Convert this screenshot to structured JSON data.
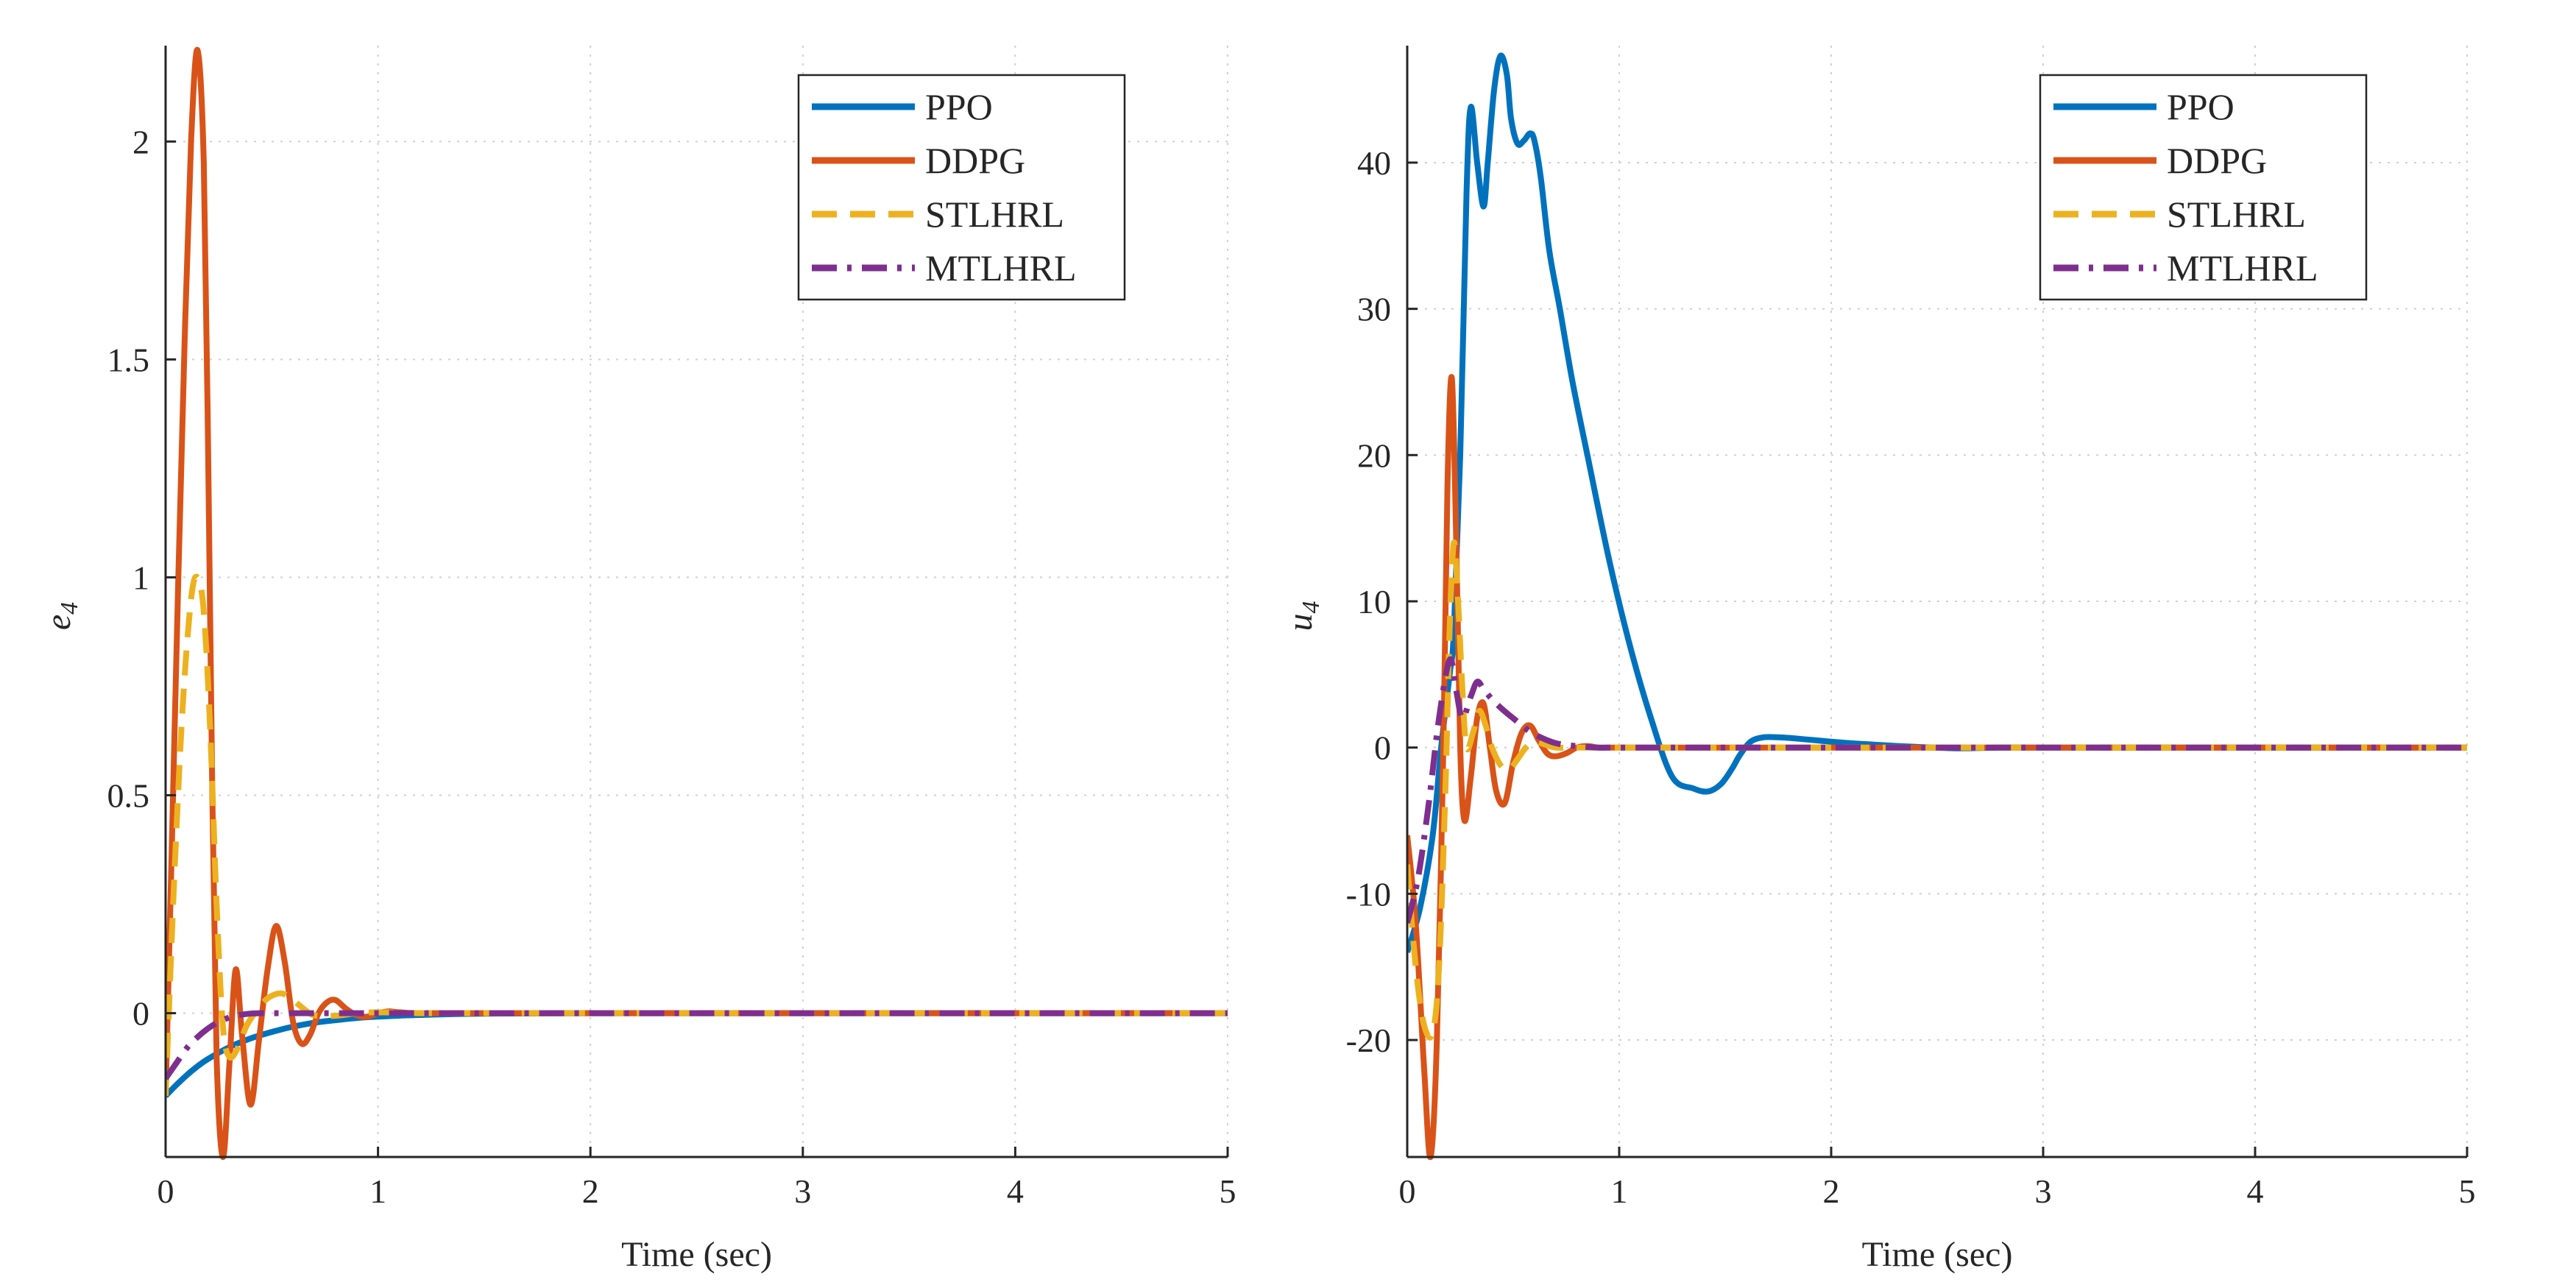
{
  "colors": {
    "PPO": "#0072BD",
    "DDPG": "#D95319",
    "STLHRL": "#EDB120",
    "MTLHRL": "#7E2F8E",
    "axis": "#262626",
    "grid": "#d0d0d0"
  },
  "chart_data": [
    {
      "type": "line",
      "title": "",
      "xlabel": "Time (sec)",
      "ylabel": "e",
      "ylabel_sub": "4",
      "xlim": [
        0,
        5
      ],
      "ylim": [
        -0.33,
        2.22
      ],
      "xticks": [
        0,
        1,
        2,
        3,
        4,
        5
      ],
      "xtick_labels": [
        "0",
        "1",
        "2",
        "3",
        "4",
        "5"
      ],
      "yticks": [
        0,
        0.5,
        1,
        1.5,
        2
      ],
      "ytick_labels": [
        "0",
        "0.5",
        "1",
        "1.5",
        "2"
      ],
      "grid": true,
      "legend_position": "top-right",
      "series": [
        {
          "name": "PPO",
          "style": "solid",
          "x": [
            0,
            0.05,
            0.1,
            0.15,
            0.2,
            0.3,
            0.4,
            0.5,
            0.6,
            0.7,
            0.8,
            0.9,
            1.0,
            1.2,
            1.5,
            2.0,
            3.0,
            4.0,
            5.0
          ],
          "y": [
            -0.19,
            -0.165,
            -0.142,
            -0.122,
            -0.105,
            -0.078,
            -0.058,
            -0.043,
            -0.031,
            -0.022,
            -0.016,
            -0.011,
            -0.008,
            -0.004,
            -0.001,
            0,
            0,
            0,
            0
          ]
        },
        {
          "name": "DDPG",
          "style": "solid",
          "x": [
            0,
            0.03,
            0.06,
            0.09,
            0.12,
            0.15,
            0.18,
            0.2,
            0.22,
            0.24,
            0.27,
            0.3,
            0.33,
            0.36,
            0.4,
            0.44,
            0.48,
            0.52,
            0.56,
            0.6,
            0.64,
            0.68,
            0.72,
            0.76,
            0.8,
            0.85,
            0.9,
            0.95,
            1.0,
            1.05,
            1.1,
            1.2,
            1.5,
            2.0,
            3.0,
            4.0,
            5.0
          ],
          "y": [
            -0.19,
            0.4,
            1.0,
            1.55,
            2.0,
            2.21,
            1.95,
            1.3,
            0.5,
            -0.1,
            -0.33,
            -0.12,
            0.1,
            -0.05,
            -0.21,
            -0.06,
            0.1,
            0.2,
            0.12,
            -0.02,
            -0.07,
            -0.05,
            0.0,
            0.025,
            0.03,
            0.01,
            -0.005,
            -0.008,
            0.0,
            0.004,
            0.002,
            0,
            0,
            0,
            0,
            0,
            0
          ]
        },
        {
          "name": "STLHRL",
          "style": "dashed",
          "x": [
            0,
            0.04,
            0.08,
            0.12,
            0.15,
            0.18,
            0.21,
            0.24,
            0.27,
            0.3,
            0.34,
            0.38,
            0.42,
            0.46,
            0.5,
            0.55,
            0.6,
            0.65,
            0.7,
            0.8,
            0.9,
            1.0,
            1.2,
            1.5,
            2.0,
            3.0,
            4.0,
            5.0
          ],
          "y": [
            -0.19,
            0.3,
            0.7,
            0.95,
            1.0,
            0.92,
            0.65,
            0.25,
            -0.03,
            -0.1,
            -0.08,
            -0.03,
            0.0,
            0.025,
            0.04,
            0.045,
            0.03,
            0.01,
            -0.005,
            -0.006,
            0.0,
            0.002,
            0,
            0,
            0,
            0,
            0,
            0
          ]
        },
        {
          "name": "MTLHRL",
          "style": "dashdot",
          "x": [
            0,
            0.05,
            0.1,
            0.15,
            0.2,
            0.25,
            0.3,
            0.35,
            0.4,
            0.45,
            0.5,
            0.6,
            0.7,
            0.8,
            1.0,
            1.5,
            2.0,
            3.0,
            4.0,
            5.0
          ],
          "y": [
            -0.15,
            -0.115,
            -0.08,
            -0.055,
            -0.035,
            -0.02,
            -0.01,
            -0.004,
            -0.001,
            0.0,
            0.0,
            0.0,
            0.0,
            0.0,
            0,
            0,
            0,
            0,
            0,
            0
          ]
        }
      ]
    },
    {
      "type": "line",
      "title": "",
      "xlabel": "Time (sec)",
      "ylabel": "u",
      "ylabel_sub": "4",
      "xlim": [
        0,
        5
      ],
      "ylim": [
        -28,
        48
      ],
      "xticks": [
        0,
        1,
        2,
        3,
        4,
        5
      ],
      "xtick_labels": [
        "0",
        "1",
        "2",
        "3",
        "4",
        "5"
      ],
      "yticks": [
        -20,
        -10,
        0,
        10,
        20,
        30,
        40
      ],
      "ytick_labels": [
        "-20",
        "-10",
        "0",
        "10",
        "20",
        "30",
        "40"
      ],
      "grid": true,
      "legend_position": "top-right",
      "series": [
        {
          "name": "PPO",
          "style": "solid",
          "x": [
            0,
            0.06,
            0.12,
            0.16,
            0.2,
            0.22,
            0.25,
            0.28,
            0.3,
            0.33,
            0.36,
            0.38,
            0.41,
            0.44,
            0.47,
            0.49,
            0.52,
            0.55,
            0.58,
            0.6,
            0.63,
            0.67,
            0.72,
            0.78,
            0.85,
            0.95,
            1.05,
            1.15,
            1.25,
            1.35,
            1.42,
            1.48,
            1.53,
            1.57,
            1.62,
            1.68,
            1.75,
            1.85,
            2.0,
            2.2,
            2.4,
            2.6,
            2.8,
            3.0,
            4.0,
            5.0
          ],
          "y": [
            -14,
            -11,
            -6,
            0,
            5,
            8,
            20,
            38,
            43.8,
            40,
            37,
            40,
            45,
            47.3,
            46,
            43,
            41.3,
            41.5,
            42,
            41.5,
            39,
            34,
            30,
            25,
            20,
            13,
            7,
            2,
            -2,
            -2.8,
            -3,
            -2.5,
            -1.5,
            -0.5,
            0.4,
            0.7,
            0.7,
            0.6,
            0.4,
            0.2,
            0.05,
            -0.05,
            0,
            0,
            0,
            0
          ]
        },
        {
          "name": "DDPG",
          "style": "solid",
          "x": [
            0,
            0.04,
            0.08,
            0.11,
            0.14,
            0.17,
            0.19,
            0.21,
            0.23,
            0.25,
            0.27,
            0.3,
            0.33,
            0.36,
            0.39,
            0.42,
            0.46,
            0.5,
            0.54,
            0.58,
            0.62,
            0.66,
            0.7,
            0.75,
            0.8,
            0.85,
            0.9,
            0.95,
            1.0,
            1.1,
            1.5,
            2.0,
            3.0,
            4.0,
            5.0
          ],
          "y": [
            -6,
            -12,
            -22,
            -28,
            -20,
            0,
            18,
            25.3,
            15,
            0,
            -5,
            -2,
            2,
            3,
            0,
            -3,
            -3.8,
            -1,
            1,
            1.5,
            0.5,
            -0.4,
            -0.6,
            -0.4,
            0,
            0.1,
            0,
            0,
            0,
            0,
            0,
            0,
            0,
            0,
            0
          ]
        },
        {
          "name": "STLHRL",
          "style": "dashed",
          "x": [
            0,
            0.04,
            0.08,
            0.12,
            0.15,
            0.18,
            0.2,
            0.22,
            0.24,
            0.26,
            0.28,
            0.31,
            0.34,
            0.37,
            0.4,
            0.44,
            0.48,
            0.52,
            0.56,
            0.6,
            0.65,
            0.7,
            0.8,
            0.9,
            1.0,
            1.5,
            2.0,
            3.0,
            4.0,
            5.0
          ],
          "y": [
            -8,
            -15,
            -19,
            -19.5,
            -15,
            -3,
            8,
            14,
            10,
            4,
            0,
            1,
            2.5,
            1.5,
            0,
            -1.2,
            -1.5,
            -0.8,
            0,
            0.4,
            0.2,
            0,
            0,
            0,
            0,
            0,
            0,
            0,
            0,
            0
          ]
        },
        {
          "name": "MTLHRL",
          "style": "dashdot",
          "x": [
            0,
            0.05,
            0.1,
            0.15,
            0.2,
            0.23,
            0.26,
            0.3,
            0.33,
            0.36,
            0.4,
            0.45,
            0.5,
            0.55,
            0.6,
            0.7,
            0.8,
            0.9,
            1.0,
            1.2,
            1.5,
            2.0,
            3.0,
            4.0,
            5.0
          ],
          "y": [
            -12,
            -9,
            -4,
            2,
            6,
            4,
            2,
            3.5,
            4.5,
            4,
            3.3,
            2.6,
            2.0,
            1.4,
            0.9,
            0.3,
            0.1,
            0,
            0,
            0,
            0,
            0,
            0,
            0,
            0
          ]
        }
      ]
    }
  ]
}
